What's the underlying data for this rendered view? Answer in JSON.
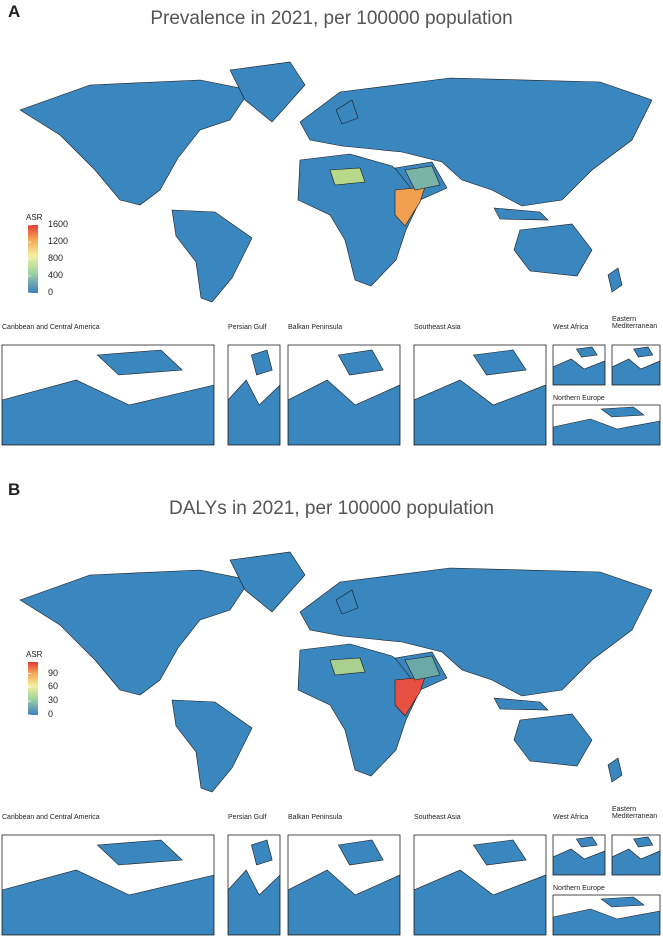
{
  "panels": [
    {
      "label": "A",
      "title": "Prevalence in 2021, per 100000 population",
      "legend": {
        "title": "ASR",
        "ticks": [
          0,
          400,
          800,
          1200,
          1600
        ],
        "range": [
          0,
          1600
        ]
      },
      "insets": [
        "Caribbean and Central America",
        "Persian Gulf",
        "Balkan Peninsula",
        "Southeast Asia",
        "West Africa",
        "Eastern Mediterranean",
        "Northern Europe"
      ]
    },
    {
      "label": "B",
      "title": "DALYs in 2021, per 100000 population",
      "legend": {
        "title": "ASR",
        "ticks": [
          0,
          30,
          60,
          90
        ],
        "range": [
          0,
          115
        ]
      },
      "insets": [
        "Caribbean and Central America",
        "Persian Gulf",
        "Balkan Peninsula",
        "Southeast Asia",
        "West Africa",
        "Eastern Mediterranean",
        "Northern Europe"
      ]
    }
  ]
}
